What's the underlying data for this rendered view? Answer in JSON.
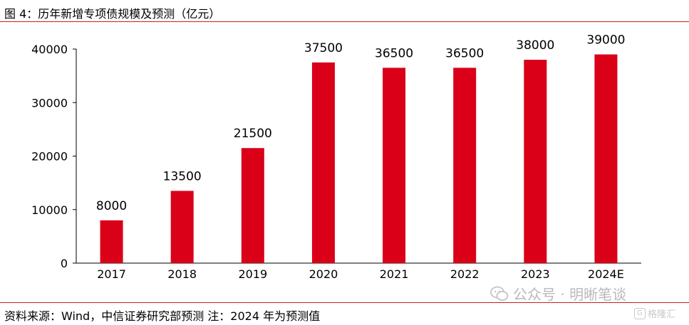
{
  "header": {
    "title": "图 4：历年新增专项债规模及预测（亿元）"
  },
  "footer": {
    "source": "资料来源：Wind，中信证券研究部预测    注：2024 年为预测值"
  },
  "watermark": {
    "text": "公众号 · 明晰笔谈",
    "corner_text": "格隆汇",
    "corner_mark": "G"
  },
  "colors": {
    "bar": "#d90018",
    "rule": "#c81e1e",
    "axis": "#000000"
  },
  "chart_data": {
    "type": "bar",
    "categories": [
      "2017",
      "2018",
      "2019",
      "2020",
      "2021",
      "2022",
      "2023",
      "2024E"
    ],
    "values": [
      8000,
      13500,
      21500,
      37500,
      36500,
      36500,
      38000,
      39000
    ],
    "data_labels": [
      "8000",
      "13500",
      "21500",
      "37500",
      "36500",
      "36500",
      "38000",
      "39000"
    ],
    "yticks": [
      0,
      10000,
      20000,
      30000,
      40000
    ],
    "ytick_labels": [
      "0",
      "10000",
      "20000",
      "30000",
      "40000"
    ],
    "ylim": [
      0,
      40000
    ],
    "grid": false,
    "legend": "none",
    "title": "",
    "xlabel": "",
    "ylabel": ""
  }
}
